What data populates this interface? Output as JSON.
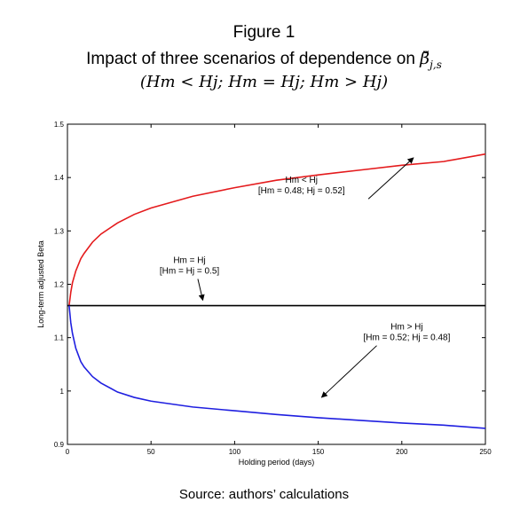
{
  "figure": {
    "title": "Figure 1",
    "subtitle_prefix": "Impact of three scenarios of dependence on ",
    "subtitle_symbol": "β̆",
    "subtitle_symbol_sub": "j,s",
    "scenarios_line": "(Hm < Hj; Hm = Hj; Hm > Hj)",
    "source": "Source: authors’ calculations"
  },
  "chart_data": {
    "type": "line",
    "xlabel": "Holding period (days)",
    "ylabel": "Long-term adjusted Beta",
    "xlim": [
      0,
      250
    ],
    "ylim": [
      0.9,
      1.5
    ],
    "xticks": [
      "0",
      "50",
      "100",
      "150",
      "200",
      "250"
    ],
    "yticks": [
      "0.9",
      "1",
      "1.1",
      "1.2",
      "1.3",
      "1.4",
      "1.5"
    ],
    "grid": false,
    "series": [
      {
        "color": "#e41a1c",
        "x": [
          1,
          2,
          3,
          5,
          8,
          10,
          15,
          20,
          30,
          40,
          50,
          75,
          100,
          125,
          150,
          175,
          200,
          225,
          250
        ],
        "y": [
          1.16,
          1.185,
          1.203,
          1.225,
          1.248,
          1.258,
          1.279,
          1.294,
          1.315,
          1.331,
          1.343,
          1.365,
          1.381,
          1.395,
          1.405,
          1.414,
          1.423,
          1.43,
          1.444
        ]
      },
      {
        "color": "#000000",
        "x": [
          0,
          250
        ],
        "y": [
          1.16,
          1.16
        ]
      },
      {
        "color": "#1f1fe0",
        "x": [
          1,
          2,
          3,
          5,
          8,
          10,
          15,
          20,
          30,
          40,
          50,
          75,
          100,
          125,
          150,
          175,
          200,
          225,
          250
        ],
        "y": [
          1.16,
          1.128,
          1.108,
          1.08,
          1.055,
          1.045,
          1.027,
          1.015,
          0.998,
          0.988,
          0.981,
          0.97,
          0.963,
          0.956,
          0.95,
          0.945,
          0.94,
          0.936,
          0.93
        ]
      }
    ],
    "annotations": [
      {
        "lines": [
          "Hm < Hj",
          "[Hm = 0.48; Hj = 0.52]"
        ],
        "text_at": [
          140,
          1.39
        ],
        "arrow_from": [
          180,
          1.36
        ],
        "arrow_to": [
          207,
          1.437
        ]
      },
      {
        "lines": [
          "Hm = Hj",
          "[Hm = Hj = 0.5]"
        ],
        "text_at": [
          73,
          1.24
        ],
        "arrow_from": [
          78,
          1.21
        ],
        "arrow_to": [
          81,
          1.17
        ]
      },
      {
        "lines": [
          "Hm > Hj",
          "[Hm = 0.52; Hj = 0.48]"
        ],
        "text_at": [
          203,
          1.115
        ],
        "arrow_from": [
          185,
          1.085
        ],
        "arrow_to": [
          152,
          0.988
        ]
      }
    ]
  }
}
